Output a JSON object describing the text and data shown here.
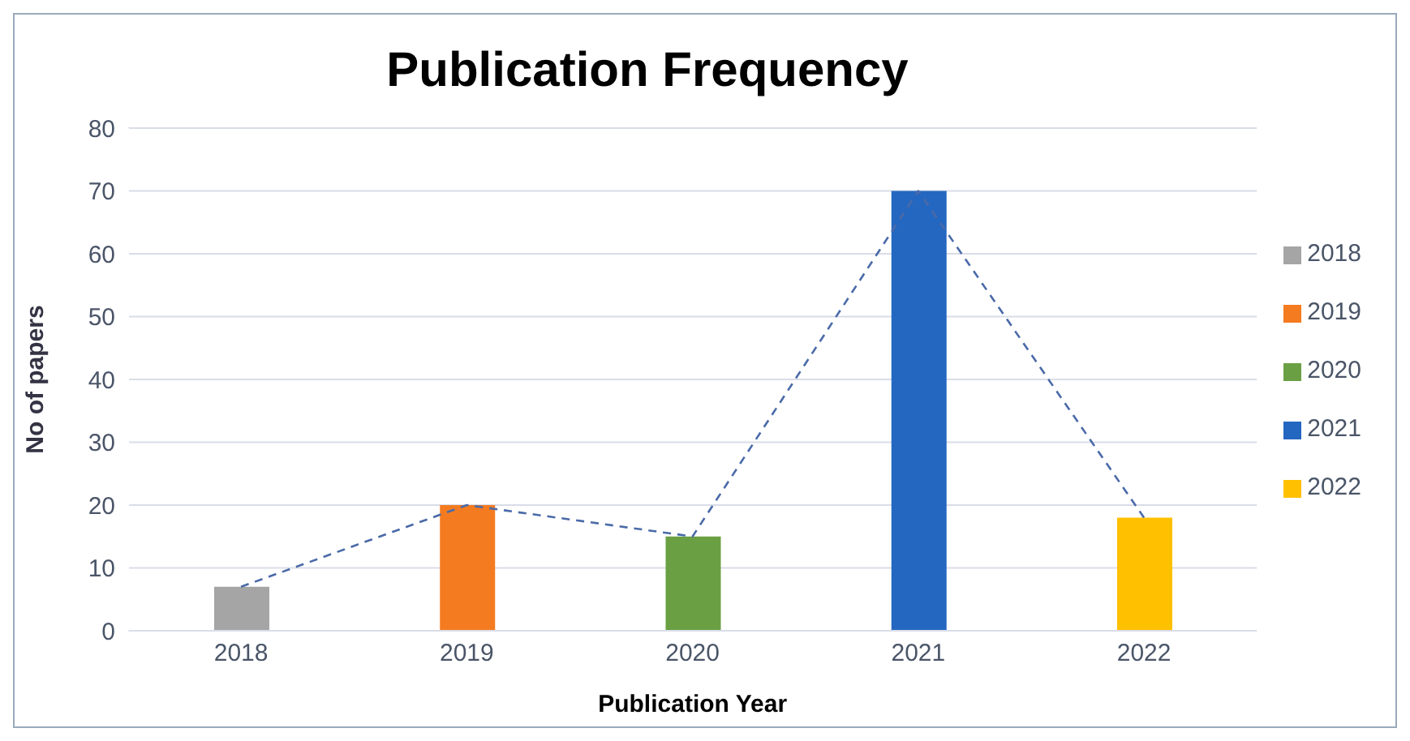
{
  "chart_data": {
    "type": "bar",
    "title": "Publication Frequency",
    "xlabel": "Publication Year",
    "ylabel": "No of  papers",
    "categories": [
      "2018",
      "2019",
      "2020",
      "2021",
      "2022"
    ],
    "series": [
      {
        "name": "2018",
        "color": "#a5a5a5",
        "values": [
          7,
          null,
          null,
          null,
          null
        ]
      },
      {
        "name": "2019",
        "color": "#f47b20",
        "values": [
          null,
          20,
          null,
          null,
          null
        ]
      },
      {
        "name": "2020",
        "color": "#6aa043",
        "values": [
          null,
          null,
          15,
          null,
          null
        ]
      },
      {
        "name": "2021",
        "color": "#2467c0",
        "values": [
          null,
          null,
          null,
          70,
          null
        ]
      },
      {
        "name": "2022",
        "color": "#ffc000",
        "values": [
          null,
          null,
          null,
          null,
          18
        ]
      },
      {
        "type": "line",
        "color": "#4a6aa8",
        "values": [
          7,
          20,
          15,
          70,
          18
        ]
      }
    ],
    "stacked": true,
    "ylim": [
      0,
      80
    ],
    "yticks": [
      0,
      10,
      20,
      30,
      40,
      50,
      60,
      70,
      80
    ],
    "grid": "y",
    "legend": "right",
    "line_style": "dashed",
    "marker": "none"
  }
}
